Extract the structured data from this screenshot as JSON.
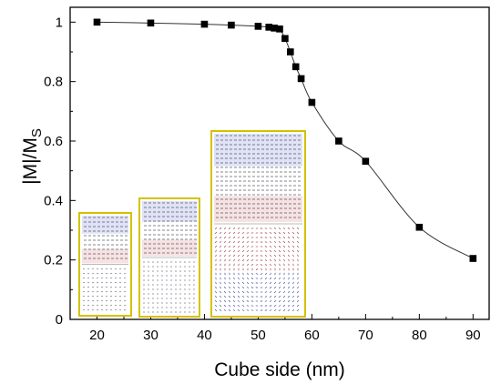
{
  "chart_data": {
    "type": "scatter",
    "xlabel": "Cube side (nm)",
    "ylabel": "|M|/M",
    "ylabel_subscript": "S",
    "xlim": [
      15,
      93
    ],
    "ylim": [
      0,
      1.05
    ],
    "x_ticks": [
      20,
      30,
      40,
      50,
      60,
      70,
      80,
      90
    ],
    "y_ticks": [
      0,
      0.2,
      0.4,
      0.6,
      0.8,
      1
    ],
    "y_tick_labels": [
      "0",
      "0.2",
      "0.4",
      "0.6",
      "0.8",
      "1"
    ],
    "grid": false,
    "marker": "square",
    "fit_line": true,
    "series": [
      {
        "x": [
          20,
          30,
          40,
          45,
          50,
          52,
          53,
          54,
          55,
          56,
          57,
          58,
          60,
          65,
          70,
          80,
          90
        ],
        "y": [
          1.0,
          0.997,
          0.993,
          0.99,
          0.986,
          0.983,
          0.98,
          0.977,
          0.945,
          0.9,
          0.85,
          0.81,
          0.73,
          0.6,
          0.532,
          0.31,
          0.205
        ]
      }
    ],
    "insets": [
      {
        "description": "magnetization map, small cube",
        "border": "#d4c200"
      },
      {
        "description": "magnetization map, medium cube",
        "border": "#d4c200"
      },
      {
        "description": "magnetization map, large cube with vortex",
        "border": "#d4c200"
      }
    ]
  }
}
